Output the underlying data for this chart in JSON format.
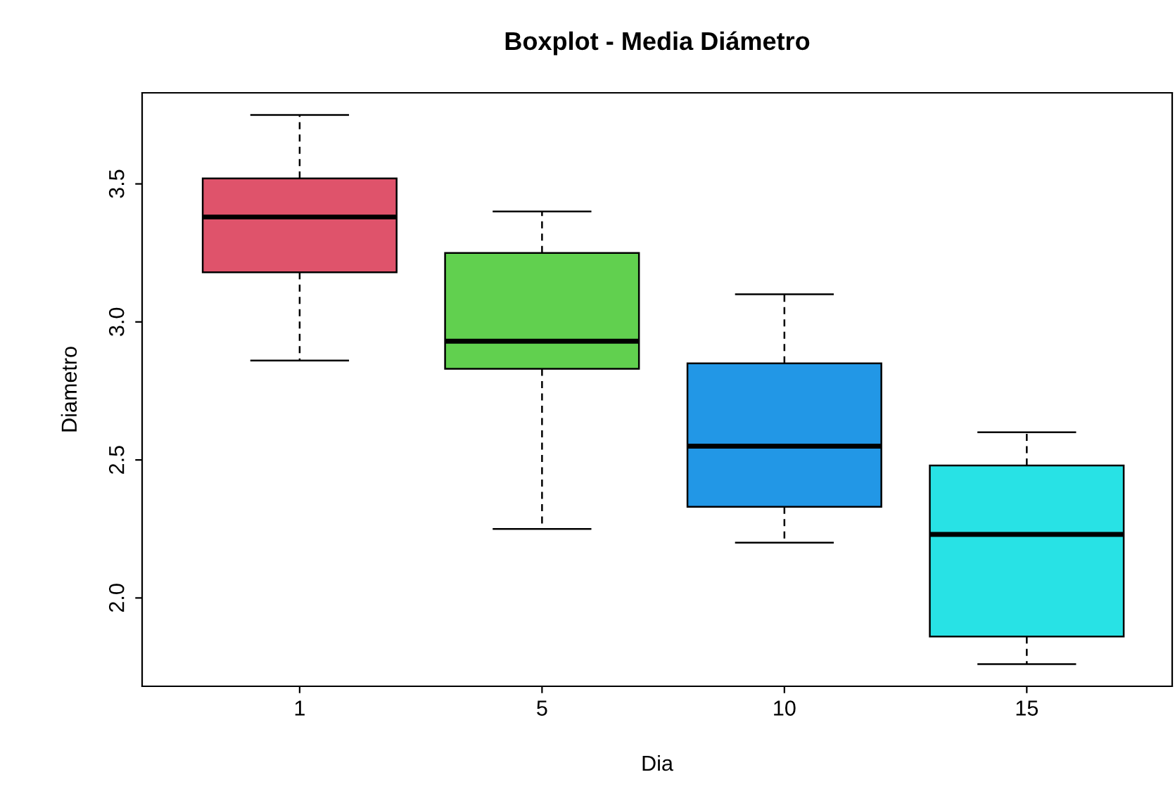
{
  "chart_data": {
    "type": "box",
    "title": "Boxplot - Media Diámetro",
    "xlabel": "Dia",
    "ylabel": "Diametro",
    "categories": [
      "1",
      "5",
      "10",
      "15"
    ],
    "colors": [
      "#df536b",
      "#61d04f",
      "#2297e6",
      "#28e2e5"
    ],
    "boxes": [
      {
        "low": 2.86,
        "q1": 3.18,
        "median": 3.38,
        "q3": 3.52,
        "high": 3.75
      },
      {
        "low": 2.25,
        "q1": 2.83,
        "median": 2.93,
        "q3": 3.25,
        "high": 3.4
      },
      {
        "low": 2.2,
        "q1": 2.33,
        "median": 2.55,
        "q3": 2.85,
        "high": 3.1
      },
      {
        "low": 1.76,
        "q1": 1.86,
        "median": 2.23,
        "q3": 2.48,
        "high": 2.6
      }
    ],
    "ylim": [
      1.68,
      3.83
    ],
    "yticks": [
      {
        "value": 2,
        "label": "2.0"
      },
      2.5,
      {
        "value": 3,
        "label": "3.0"
      },
      3.5
    ],
    "grid": false
  }
}
